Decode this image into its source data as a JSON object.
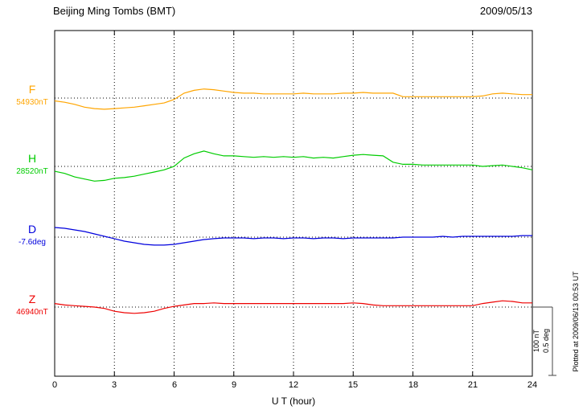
{
  "header": {
    "title": "Beijing Ming Tombs (BMT)",
    "date": "2009/05/13"
  },
  "axis": {
    "xlabel": "U T (hour)",
    "ticks": [
      0,
      3,
      6,
      9,
      12,
      15,
      18,
      21,
      24
    ]
  },
  "scalebar": {
    "line1": "100 nT",
    "line2": "0.5 deg"
  },
  "footnote": "Plotted at 2009/06/13 00:53 UT",
  "chart_data": {
    "type": "line",
    "title": "Beijing Ming Tombs (BMT)",
    "date": "2009/05/13",
    "xlabel": "U T (hour)",
    "x_range": [
      0,
      24
    ],
    "x_ticks": [
      0,
      3,
      6,
      9,
      12,
      15,
      18,
      21,
      24
    ],
    "x_step_hours": 0.5,
    "grid": "vertical-dotted-every-3h-and-dotted-baselines",
    "scale": {
      "nT_per_div": 100,
      "deg_per_div": 0.5
    },
    "series": [
      {
        "name": "F",
        "unit": "nT",
        "base_value": 54930,
        "base_label": "54930nT",
        "color": "#FFA500",
        "offsets": [
          -4,
          -6,
          -9,
          -13,
          -15,
          -16,
          -15,
          -14,
          -13,
          -11,
          -9,
          -7,
          -2,
          7,
          11,
          13,
          12,
          10,
          8,
          7,
          7,
          6,
          6,
          6,
          6,
          7,
          6,
          6,
          6,
          7,
          7,
          8,
          7,
          7,
          7,
          2,
          2,
          2,
          2,
          2,
          2,
          2,
          2,
          3,
          6,
          7,
          6,
          5,
          5
        ]
      },
      {
        "name": "H",
        "unit": "nT",
        "base_value": 28520,
        "base_label": "28520nT",
        "color": "#00CC00",
        "offsets": [
          -7,
          -10,
          -15,
          -18,
          -21,
          -20,
          -17,
          -16,
          -14,
          -11,
          -8,
          -5,
          0,
          12,
          18,
          22,
          18,
          15,
          15,
          14,
          13,
          14,
          13,
          14,
          13,
          14,
          12,
          13,
          12,
          14,
          16,
          17,
          16,
          15,
          6,
          3,
          3,
          2,
          2,
          2,
          2,
          2,
          2,
          0,
          1,
          2,
          0,
          -2,
          -5
        ]
      },
      {
        "name": "D",
        "unit": "deg",
        "base_value": -7.6,
        "base_label": "-7.6deg",
        "color": "#0000DD",
        "offsets": [
          0.069,
          0.063,
          0.052,
          0.04,
          0.023,
          0.006,
          -0.011,
          -0.029,
          -0.04,
          -0.052,
          -0.057,
          -0.057,
          -0.052,
          -0.04,
          -0.029,
          -0.017,
          -0.011,
          -0.006,
          -0.006,
          -0.006,
          -0.011,
          -0.006,
          -0.006,
          -0.011,
          -0.006,
          -0.006,
          -0.011,
          -0.006,
          -0.006,
          -0.011,
          -0.006,
          -0.006,
          -0.006,
          -0.006,
          -0.006,
          0,
          0,
          0,
          0,
          0.006,
          0,
          0.006,
          0.006,
          0.006,
          0.006,
          0.006,
          0.006,
          0.011,
          0.011
        ]
      },
      {
        "name": "Z",
        "unit": "nT",
        "base_value": 46940,
        "base_label": "46940nT",
        "color": "#EE0000",
        "offsets": [
          5,
          3,
          2,
          1,
          0,
          -2,
          -6,
          -8,
          -9,
          -8,
          -6,
          -2,
          1,
          3,
          5,
          5,
          6,
          5,
          5,
          5,
          5,
          5,
          5,
          5,
          5,
          5,
          5,
          5,
          5,
          5,
          6,
          5,
          3,
          2,
          2,
          2,
          2,
          2,
          2,
          2,
          2,
          2,
          2,
          5,
          7,
          9,
          8,
          6,
          6
        ]
      }
    ]
  }
}
